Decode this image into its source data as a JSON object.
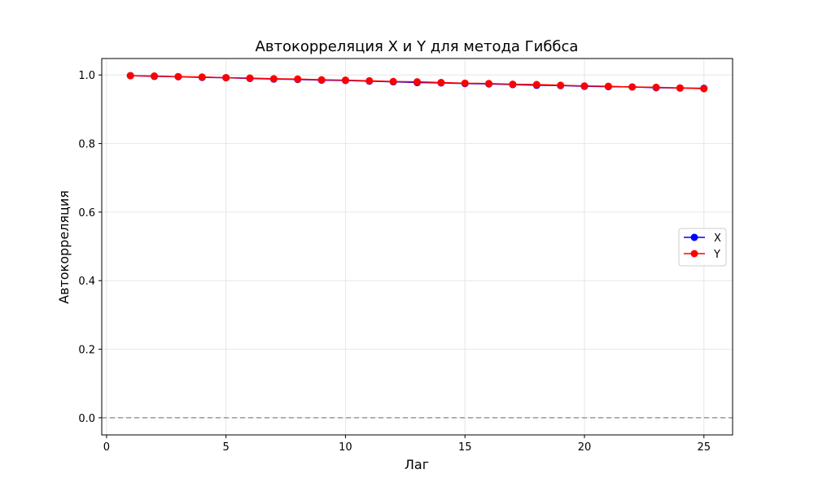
{
  "chart_data": {
    "type": "line",
    "title": "Автокорреляция X и Y для метода Гиббса",
    "xlabel": "Лаг",
    "ylabel": "Автокорреляция",
    "x": [
      1,
      2,
      3,
      4,
      5,
      6,
      7,
      8,
      9,
      10,
      11,
      12,
      13,
      14,
      15,
      16,
      17,
      18,
      19,
      20,
      21,
      22,
      23,
      24,
      25
    ],
    "series": [
      {
        "name": "X",
        "color": "#0000ff",
        "marker": "circle",
        "values": [
          0.998,
          0.996,
          0.995,
          0.993,
          0.992,
          0.99,
          0.988,
          0.987,
          0.985,
          0.984,
          0.982,
          0.98,
          0.978,
          0.977,
          0.975,
          0.974,
          0.972,
          0.97,
          0.969,
          0.967,
          0.966,
          0.965,
          0.963,
          0.962,
          0.961
        ]
      },
      {
        "name": "Y",
        "color": "#ff0000",
        "marker": "circle",
        "values": [
          0.998,
          0.997,
          0.995,
          0.994,
          0.992,
          0.991,
          0.989,
          0.988,
          0.986,
          0.985,
          0.983,
          0.981,
          0.98,
          0.978,
          0.976,
          0.975,
          0.973,
          0.972,
          0.97,
          0.968,
          0.967,
          0.965,
          0.964,
          0.962,
          0.96
        ]
      }
    ],
    "xlim": [
      -0.2,
      26.2
    ],
    "ylim": [
      -0.05,
      1.048
    ],
    "xticks": [
      0,
      5,
      10,
      15,
      20,
      25
    ],
    "yticks": [
      0.0,
      0.2,
      0.4,
      0.6,
      0.8,
      1.0
    ],
    "xtick_labels": [
      "0",
      "5",
      "10",
      "15",
      "20",
      "25"
    ],
    "ytick_labels": [
      "0.0",
      "0.2",
      "0.4",
      "0.6",
      "0.8",
      "1.0"
    ],
    "reference_line": {
      "y": 0,
      "color": "#999999",
      "style": "dashed"
    },
    "grid": true,
    "legend_position": "center-right"
  }
}
